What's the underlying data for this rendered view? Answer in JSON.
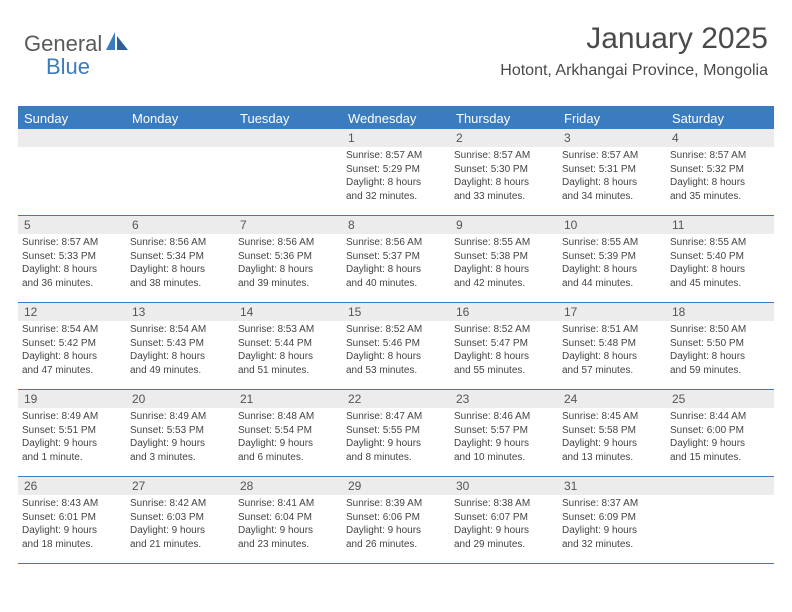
{
  "logo": {
    "general": "General",
    "blue": "Blue"
  },
  "title": "January 2025",
  "subtitle": "Hotont, Arkhangai Province, Mongolia",
  "colors": {
    "brand_blue": "#3b7bbf",
    "header_text": "#ffffff",
    "daynum_bg": "#ececec",
    "text_gray": "#4a4a4a",
    "body_text": "#444444",
    "page_bg": "#ffffff"
  },
  "day_headers": [
    "Sunday",
    "Monday",
    "Tuesday",
    "Wednesday",
    "Thursday",
    "Friday",
    "Saturday"
  ],
  "weeks": [
    [
      {
        "n": "",
        "lines": []
      },
      {
        "n": "",
        "lines": []
      },
      {
        "n": "",
        "lines": []
      },
      {
        "n": "1",
        "lines": [
          "Sunrise: 8:57 AM",
          "Sunset: 5:29 PM",
          "Daylight: 8 hours",
          "and 32 minutes."
        ]
      },
      {
        "n": "2",
        "lines": [
          "Sunrise: 8:57 AM",
          "Sunset: 5:30 PM",
          "Daylight: 8 hours",
          "and 33 minutes."
        ]
      },
      {
        "n": "3",
        "lines": [
          "Sunrise: 8:57 AM",
          "Sunset: 5:31 PM",
          "Daylight: 8 hours",
          "and 34 minutes."
        ]
      },
      {
        "n": "4",
        "lines": [
          "Sunrise: 8:57 AM",
          "Sunset: 5:32 PM",
          "Daylight: 8 hours",
          "and 35 minutes."
        ]
      }
    ],
    [
      {
        "n": "5",
        "lines": [
          "Sunrise: 8:57 AM",
          "Sunset: 5:33 PM",
          "Daylight: 8 hours",
          "and 36 minutes."
        ]
      },
      {
        "n": "6",
        "lines": [
          "Sunrise: 8:56 AM",
          "Sunset: 5:34 PM",
          "Daylight: 8 hours",
          "and 38 minutes."
        ]
      },
      {
        "n": "7",
        "lines": [
          "Sunrise: 8:56 AM",
          "Sunset: 5:36 PM",
          "Daylight: 8 hours",
          "and 39 minutes."
        ]
      },
      {
        "n": "8",
        "lines": [
          "Sunrise: 8:56 AM",
          "Sunset: 5:37 PM",
          "Daylight: 8 hours",
          "and 40 minutes."
        ]
      },
      {
        "n": "9",
        "lines": [
          "Sunrise: 8:55 AM",
          "Sunset: 5:38 PM",
          "Daylight: 8 hours",
          "and 42 minutes."
        ]
      },
      {
        "n": "10",
        "lines": [
          "Sunrise: 8:55 AM",
          "Sunset: 5:39 PM",
          "Daylight: 8 hours",
          "and 44 minutes."
        ]
      },
      {
        "n": "11",
        "lines": [
          "Sunrise: 8:55 AM",
          "Sunset: 5:40 PM",
          "Daylight: 8 hours",
          "and 45 minutes."
        ]
      }
    ],
    [
      {
        "n": "12",
        "lines": [
          "Sunrise: 8:54 AM",
          "Sunset: 5:42 PM",
          "Daylight: 8 hours",
          "and 47 minutes."
        ]
      },
      {
        "n": "13",
        "lines": [
          "Sunrise: 8:54 AM",
          "Sunset: 5:43 PM",
          "Daylight: 8 hours",
          "and 49 minutes."
        ]
      },
      {
        "n": "14",
        "lines": [
          "Sunrise: 8:53 AM",
          "Sunset: 5:44 PM",
          "Daylight: 8 hours",
          "and 51 minutes."
        ]
      },
      {
        "n": "15",
        "lines": [
          "Sunrise: 8:52 AM",
          "Sunset: 5:46 PM",
          "Daylight: 8 hours",
          "and 53 minutes."
        ]
      },
      {
        "n": "16",
        "lines": [
          "Sunrise: 8:52 AM",
          "Sunset: 5:47 PM",
          "Daylight: 8 hours",
          "and 55 minutes."
        ]
      },
      {
        "n": "17",
        "lines": [
          "Sunrise: 8:51 AM",
          "Sunset: 5:48 PM",
          "Daylight: 8 hours",
          "and 57 minutes."
        ]
      },
      {
        "n": "18",
        "lines": [
          "Sunrise: 8:50 AM",
          "Sunset: 5:50 PM",
          "Daylight: 8 hours",
          "and 59 minutes."
        ]
      }
    ],
    [
      {
        "n": "19",
        "lines": [
          "Sunrise: 8:49 AM",
          "Sunset: 5:51 PM",
          "Daylight: 9 hours",
          "and 1 minute."
        ]
      },
      {
        "n": "20",
        "lines": [
          "Sunrise: 8:49 AM",
          "Sunset: 5:53 PM",
          "Daylight: 9 hours",
          "and 3 minutes."
        ]
      },
      {
        "n": "21",
        "lines": [
          "Sunrise: 8:48 AM",
          "Sunset: 5:54 PM",
          "Daylight: 9 hours",
          "and 6 minutes."
        ]
      },
      {
        "n": "22",
        "lines": [
          "Sunrise: 8:47 AM",
          "Sunset: 5:55 PM",
          "Daylight: 9 hours",
          "and 8 minutes."
        ]
      },
      {
        "n": "23",
        "lines": [
          "Sunrise: 8:46 AM",
          "Sunset: 5:57 PM",
          "Daylight: 9 hours",
          "and 10 minutes."
        ]
      },
      {
        "n": "24",
        "lines": [
          "Sunrise: 8:45 AM",
          "Sunset: 5:58 PM",
          "Daylight: 9 hours",
          "and 13 minutes."
        ]
      },
      {
        "n": "25",
        "lines": [
          "Sunrise: 8:44 AM",
          "Sunset: 6:00 PM",
          "Daylight: 9 hours",
          "and 15 minutes."
        ]
      }
    ],
    [
      {
        "n": "26",
        "lines": [
          "Sunrise: 8:43 AM",
          "Sunset: 6:01 PM",
          "Daylight: 9 hours",
          "and 18 minutes."
        ]
      },
      {
        "n": "27",
        "lines": [
          "Sunrise: 8:42 AM",
          "Sunset: 6:03 PM",
          "Daylight: 9 hours",
          "and 21 minutes."
        ]
      },
      {
        "n": "28",
        "lines": [
          "Sunrise: 8:41 AM",
          "Sunset: 6:04 PM",
          "Daylight: 9 hours",
          "and 23 minutes."
        ]
      },
      {
        "n": "29",
        "lines": [
          "Sunrise: 8:39 AM",
          "Sunset: 6:06 PM",
          "Daylight: 9 hours",
          "and 26 minutes."
        ]
      },
      {
        "n": "30",
        "lines": [
          "Sunrise: 8:38 AM",
          "Sunset: 6:07 PM",
          "Daylight: 9 hours",
          "and 29 minutes."
        ]
      },
      {
        "n": "31",
        "lines": [
          "Sunrise: 8:37 AM",
          "Sunset: 6:09 PM",
          "Daylight: 9 hours",
          "and 32 minutes."
        ]
      },
      {
        "n": "",
        "lines": []
      }
    ]
  ]
}
